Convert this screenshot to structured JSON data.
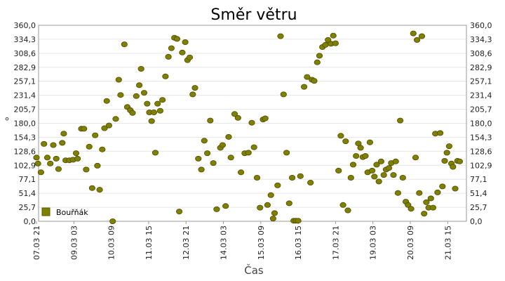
{
  "chart_data": {
    "type": "scatter",
    "title": "Směr větru",
    "xlabel": "Čas",
    "ylabel": "°",
    "ylim": [
      0,
      360
    ],
    "yticks": [
      "0,0",
      "25,7",
      "51,4",
      "77,1",
      "102,9",
      "128,6",
      "154,3",
      "180,0",
      "205,7",
      "231,4",
      "257,1",
      "282,9",
      "308,6",
      "334,3",
      "360,0"
    ],
    "xticks": [
      "07.03 21",
      "09.03 03",
      "10.03 09",
      "11.03 15",
      "12.03 21",
      "14.03 03",
      "15.03 09",
      "16.03 15",
      "17.03 21",
      "19.03 03",
      "20.03 09",
      "21.03 15"
    ],
    "xlim": [
      0,
      11
    ],
    "grid": true,
    "legend": "bottom-left",
    "series": [
      {
        "name": "Bouřňák",
        "color": "#808000",
        "points": [
          [
            0.0,
            117
          ],
          [
            0.04,
            106
          ],
          [
            0.12,
            90
          ],
          [
            0.2,
            142
          ],
          [
            0.29,
            117
          ],
          [
            0.37,
            106
          ],
          [
            0.45,
            140
          ],
          [
            0.53,
            115
          ],
          [
            0.59,
            96
          ],
          [
            0.69,
            144
          ],
          [
            0.73,
            161
          ],
          [
            0.78,
            112
          ],
          [
            0.88,
            112
          ],
          [
            0.98,
            113
          ],
          [
            1.06,
            125
          ],
          [
            1.1,
            115
          ],
          [
            1.2,
            170
          ],
          [
            1.27,
            170
          ],
          [
            1.33,
            95
          ],
          [
            1.41,
            137
          ],
          [
            1.49,
            61
          ],
          [
            1.57,
            158
          ],
          [
            1.63,
            102
          ],
          [
            1.69,
            58
          ],
          [
            1.76,
            132
          ],
          [
            1.82,
            171
          ],
          [
            1.88,
            221
          ],
          [
            1.94,
            176
          ],
          [
            2.04,
            0
          ],
          [
            2.12,
            188
          ],
          [
            2.2,
            260
          ],
          [
            2.25,
            232
          ],
          [
            2.35,
            325
          ],
          [
            2.43,
            210
          ],
          [
            2.51,
            204
          ],
          [
            2.57,
            199
          ],
          [
            2.67,
            230
          ],
          [
            2.75,
            250
          ],
          [
            2.8,
            280
          ],
          [
            2.88,
            236
          ],
          [
            2.96,
            216
          ],
          [
            3.02,
            200
          ],
          [
            3.08,
            184
          ],
          [
            3.14,
            200
          ],
          [
            3.18,
            126
          ],
          [
            3.24,
            216
          ],
          [
            3.31,
            203
          ],
          [
            3.37,
            223
          ],
          [
            3.45,
            266
          ],
          [
            3.53,
            302
          ],
          [
            3.61,
            318
          ],
          [
            3.69,
            337
          ],
          [
            3.76,
            335
          ],
          [
            3.82,
            18
          ],
          [
            3.9,
            310
          ],
          [
            3.98,
            329
          ],
          [
            4.04,
            296
          ],
          [
            4.1,
            301
          ],
          [
            4.18,
            233
          ],
          [
            4.24,
            245
          ],
          [
            4.33,
            115
          ],
          [
            4.41,
            95
          ],
          [
            4.49,
            148
          ],
          [
            4.57,
            125
          ],
          [
            4.65,
            185
          ],
          [
            4.73,
            107
          ],
          [
            4.82,
            22
          ],
          [
            4.92,
            135
          ],
          [
            4.98,
            140
          ],
          [
            5.06,
            28
          ],
          [
            5.14,
            155
          ],
          [
            5.2,
            117
          ],
          [
            5.3,
            197
          ],
          [
            5.39,
            190
          ],
          [
            5.47,
            90
          ],
          [
            5.57,
            125
          ],
          [
            5.67,
            126
          ],
          [
            5.76,
            181
          ],
          [
            5.82,
            136
          ],
          [
            5.9,
            80
          ],
          [
            5.98,
            25
          ],
          [
            6.06,
            187
          ],
          [
            6.12,
            189
          ],
          [
            6.18,
            30
          ],
          [
            6.27,
            48
          ],
          [
            6.33,
            5
          ],
          [
            6.37,
            15
          ],
          [
            6.45,
            66
          ],
          [
            6.53,
            340
          ],
          [
            6.61,
            233
          ],
          [
            6.69,
            126
          ],
          [
            6.76,
            33
          ],
          [
            6.84,
            80
          ],
          [
            6.88,
            1
          ],
          [
            6.94,
            1
          ],
          [
            7.0,
            1
          ],
          [
            7.06,
            83
          ],
          [
            7.16,
            247
          ],
          [
            7.24,
            265
          ],
          [
            7.33,
            71
          ],
          [
            7.37,
            260
          ],
          [
            7.43,
            258
          ],
          [
            7.51,
            292
          ],
          [
            7.57,
            304
          ],
          [
            7.65,
            320
          ],
          [
            7.73,
            324
          ],
          [
            7.8,
            333
          ],
          [
            7.88,
            326
          ],
          [
            7.94,
            341
          ],
          [
            8.0,
            327
          ],
          [
            8.08,
            93
          ],
          [
            8.14,
            157
          ],
          [
            8.2,
            30
          ],
          [
            8.27,
            147
          ],
          [
            8.33,
            20
          ],
          [
            8.41,
            80
          ],
          [
            8.47,
            104
          ],
          [
            8.55,
            120
          ],
          [
            8.61,
            143
          ],
          [
            8.67,
            135
          ],
          [
            8.73,
            118
          ],
          [
            8.8,
            120
          ],
          [
            8.86,
            90
          ],
          [
            8.92,
            145
          ],
          [
            8.98,
            93
          ],
          [
            9.04,
            82
          ],
          [
            9.1,
            104
          ],
          [
            9.16,
            73
          ],
          [
            9.22,
            110
          ],
          [
            9.29,
            85
          ],
          [
            9.35,
            95
          ],
          [
            9.43,
            98
          ],
          [
            9.49,
            107
          ],
          [
            9.55,
            85
          ],
          [
            9.61,
            110
          ],
          [
            9.67,
            52
          ],
          [
            9.73,
            185
          ],
          [
            9.8,
            80
          ],
          [
            9.88,
            36
          ],
          [
            9.94,
            30
          ],
          [
            10.02,
            23
          ],
          [
            10.08,
            345
          ],
          [
            10.14,
            117
          ],
          [
            10.18,
            333
          ],
          [
            10.24,
            52
          ],
          [
            10.31,
            340
          ],
          [
            10.37,
            14
          ],
          [
            10.43,
            35
          ],
          [
            10.49,
            25
          ],
          [
            10.55,
            42
          ],
          [
            10.61,
            25
          ],
          [
            10.67,
            161
          ],
          [
            10.73,
            53
          ],
          [
            10.8,
            162
          ],
          [
            10.86,
            64
          ],
          [
            10.92,
            111
          ],
          [
            10.98,
            126
          ],
          [
            11.04,
            138
          ],
          [
            11.1,
            106
          ],
          [
            11.14,
            100
          ],
          [
            11.2,
            60
          ],
          [
            11.26,
            111
          ],
          [
            11.32,
            110
          ]
        ]
      }
    ]
  }
}
